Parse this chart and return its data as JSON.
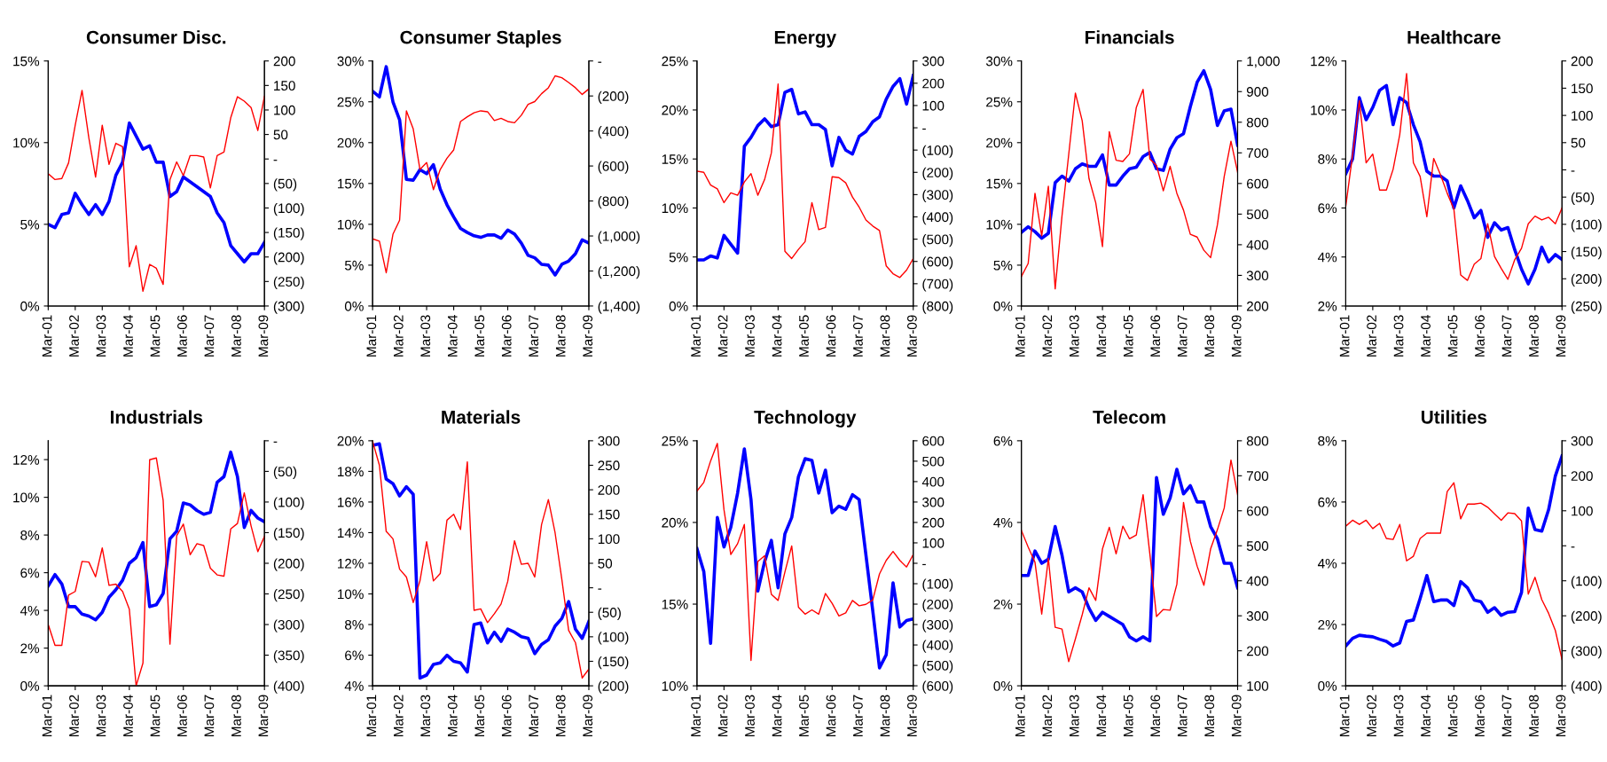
{
  "chart_data": [
    {
      "type": "line",
      "title": "Consumer Disc.",
      "x": [
        "2001-03",
        "2001-06",
        "2001-09",
        "2001-12",
        "2002-03",
        "2002-06",
        "2002-09",
        "2002-12",
        "2003-03",
        "2003-06",
        "2003-09",
        "2003-12",
        "2004-03",
        "2004-06",
        "2004-09",
        "2004-12",
        "2005-03",
        "2005-06",
        "2005-09",
        "2005-12",
        "2006-03",
        "2006-06",
        "2006-09",
        "2006-12",
        "2007-03",
        "2007-06",
        "2007-09",
        "2007-12",
        "2008-03",
        "2008-06",
        "2008-09",
        "2008-12",
        "2009-03"
      ],
      "xlim": [
        "2001-03",
        "2009-03"
      ],
      "xticks": [
        {
          "value": "2001-03",
          "label": "Mar-01"
        },
        {
          "value": "2002-03",
          "label": "Mar-02"
        },
        {
          "value": "2003-03",
          "label": "Mar-03"
        },
        {
          "value": "2004-03",
          "label": "Mar-04"
        },
        {
          "value": "2005-03",
          "label": "Mar-05"
        },
        {
          "value": "2006-03",
          "label": "Mar-06"
        },
        {
          "value": "2007-03",
          "label": "Mar-07"
        },
        {
          "value": "2008-03",
          "label": "Mar-08"
        },
        {
          "value": "2009-03",
          "label": "Mar-09"
        }
      ],
      "ylim": [
        0,
        15
      ],
      "yticks": [
        {
          "value": 0,
          "label": "0%"
        },
        {
          "value": 5,
          "label": "5%"
        },
        {
          "value": 10,
          "label": "10%"
        },
        {
          "value": 15,
          "label": "15%"
        }
      ],
      "y2lim": [
        -300,
        200
      ],
      "y2ticks": [
        {
          "value": -300,
          "label": "(300)"
        },
        {
          "value": -250,
          "label": "(250)"
        },
        {
          "value": -200,
          "label": "(200)"
        },
        {
          "value": -150,
          "label": "(150)"
        },
        {
          "value": -100,
          "label": "(100)"
        },
        {
          "value": -50,
          "label": "(50)"
        },
        {
          "value": 0,
          "label": "-"
        },
        50,
        100,
        150,
        200
      ],
      "series": [
        {
          "color": "#0000ff",
          "axis": "y",
          "values": [
            5.0,
            4.8,
            5.6,
            5.7,
            6.9,
            6.2,
            5.6,
            6.2,
            5.6,
            6.4,
            8.0,
            8.8,
            11.2,
            10.4,
            9.6,
            9.8,
            8.8,
            8.8,
            6.7,
            7.0,
            7.9,
            7.6,
            7.3,
            7.0,
            6.7,
            5.7,
            5.1,
            3.7,
            3.2,
            2.7,
            3.2,
            3.2,
            3.9
          ]
        },
        {
          "color": "#ff0000",
          "axis": "y2",
          "values": [
            -30,
            -42,
            -40,
            -8,
            69,
            140,
            43,
            -37,
            69,
            -11,
            32,
            25,
            -220,
            -177,
            -270,
            -215,
            -223,
            -256,
            -42,
            -6,
            -34,
            7,
            7,
            4,
            -59,
            7,
            14,
            84,
            127,
            118,
            105,
            58,
            128
          ]
        }
      ]
    },
    {
      "type": "line",
      "title": "Consumer Staples",
      "x": [
        "2001-03",
        "2001-06",
        "2001-09",
        "2001-12",
        "2002-03",
        "2002-06",
        "2002-09",
        "2002-12",
        "2003-03",
        "2003-06",
        "2003-09",
        "2003-12",
        "2004-03",
        "2004-06",
        "2004-09",
        "2004-12",
        "2005-03",
        "2005-06",
        "2005-09",
        "2005-12",
        "2006-03",
        "2006-06",
        "2006-09",
        "2006-12",
        "2007-03",
        "2007-06",
        "2007-09",
        "2007-12",
        "2008-03",
        "2008-06",
        "2008-09",
        "2008-12",
        "2009-03"
      ],
      "xlim": [
        "2001-03",
        "2009-03"
      ],
      "xticks": [
        {
          "value": "2001-03",
          "label": "Mar-01"
        },
        {
          "value": "2002-03",
          "label": "Mar-02"
        },
        {
          "value": "2003-03",
          "label": "Mar-03"
        },
        {
          "value": "2004-03",
          "label": "Mar-04"
        },
        {
          "value": "2005-03",
          "label": "Mar-05"
        },
        {
          "value": "2006-03",
          "label": "Mar-06"
        },
        {
          "value": "2007-03",
          "label": "Mar-07"
        },
        {
          "value": "2008-03",
          "label": "Mar-08"
        },
        {
          "value": "2009-03",
          "label": "Mar-09"
        }
      ],
      "ylim": [
        0,
        30
      ],
      "yticks": [
        {
          "value": 0,
          "label": "0%"
        },
        {
          "value": 5,
          "label": "5%"
        },
        {
          "value": 10,
          "label": "10%"
        },
        {
          "value": 15,
          "label": "15%"
        },
        {
          "value": 20,
          "label": "20%"
        },
        {
          "value": 25,
          "label": "25%"
        },
        {
          "value": 30,
          "label": "30%"
        }
      ],
      "y2lim": [
        -1400,
        0
      ],
      "y2ticks": [
        {
          "value": -1400,
          "label": "(1,400)"
        },
        {
          "value": -1200,
          "label": "(1,200)"
        },
        {
          "value": -1000,
          "label": "(1,000)"
        },
        {
          "value": -800,
          "label": "(800)"
        },
        {
          "value": -600,
          "label": "(600)"
        },
        {
          "value": -400,
          "label": "(400)"
        },
        {
          "value": -200,
          "label": "(200)"
        },
        {
          "value": 0,
          "label": "-"
        }
      ],
      "series": [
        {
          "color": "#0000ff",
          "axis": "y",
          "values": [
            26.3,
            25.6,
            29.3,
            25.0,
            22.8,
            15.5,
            15.4,
            16.7,
            16.2,
            17.3,
            14.3,
            12.4,
            10.9,
            9.5,
            9.0,
            8.6,
            8.4,
            8.7,
            8.7,
            8.3,
            9.3,
            8.8,
            7.7,
            6.2,
            5.9,
            5.1,
            5.0,
            3.8,
            5.1,
            5.5,
            6.4,
            8.1,
            7.7
          ]
        },
        {
          "color": "#ff0000",
          "axis": "y2",
          "values": [
            -1016,
            -1030,
            -1210,
            -990,
            -910,
            -285,
            -388,
            -620,
            -580,
            -735,
            -620,
            -556,
            -508,
            -346,
            -319,
            -296,
            -285,
            -290,
            -340,
            -328,
            -346,
            -353,
            -310,
            -248,
            -232,
            -187,
            -153,
            -85,
            -96,
            -123,
            -153,
            -191,
            -160
          ]
        }
      ]
    },
    {
      "type": "line",
      "title": "Energy",
      "x": [
        "2001-03",
        "2001-06",
        "2001-09",
        "2001-12",
        "2002-03",
        "2002-06",
        "2002-09",
        "2002-12",
        "2003-03",
        "2003-06",
        "2003-09",
        "2003-12",
        "2004-03",
        "2004-06",
        "2004-09",
        "2004-12",
        "2005-03",
        "2005-06",
        "2005-09",
        "2005-12",
        "2006-03",
        "2006-06",
        "2006-09",
        "2006-12",
        "2007-03",
        "2007-06",
        "2007-09",
        "2007-12",
        "2008-03",
        "2008-06",
        "2008-09",
        "2008-12",
        "2009-03"
      ],
      "xlim": [
        "2001-03",
        "2009-03"
      ],
      "xticks": [
        {
          "value": "2001-03",
          "label": "Mar-01"
        },
        {
          "value": "2002-03",
          "label": "Mar-02"
        },
        {
          "value": "2003-03",
          "label": "Mar-03"
        },
        {
          "value": "2004-03",
          "label": "Mar-04"
        },
        {
          "value": "2005-03",
          "label": "Mar-05"
        },
        {
          "value": "2006-03",
          "label": "Mar-06"
        },
        {
          "value": "2007-03",
          "label": "Mar-07"
        },
        {
          "value": "2008-03",
          "label": "Mar-08"
        },
        {
          "value": "2009-03",
          "label": "Mar-09"
        }
      ],
      "ylim": [
        0,
        25
      ],
      "yticks": [
        {
          "value": 0,
          "label": "0%"
        },
        {
          "value": 5,
          "label": "5%"
        },
        {
          "value": 10,
          "label": "10%"
        },
        {
          "value": 15,
          "label": "15%"
        },
        {
          "value": 20,
          "label": "20%"
        },
        {
          "value": 25,
          "label": "25%"
        }
      ],
      "y2lim": [
        -800,
        300
      ],
      "y2ticks": [
        {
          "value": -800,
          "label": "(800)"
        },
        {
          "value": -700,
          "label": "(700)"
        },
        {
          "value": -600,
          "label": "(600)"
        },
        {
          "value": -500,
          "label": "(500)"
        },
        {
          "value": -400,
          "label": "(400)"
        },
        {
          "value": -300,
          "label": "(300)"
        },
        {
          "value": -200,
          "label": "(200)"
        },
        {
          "value": -100,
          "label": "(100)"
        },
        {
          "value": 0,
          "label": "-"
        },
        100,
        200,
        300
      ],
      "series": [
        {
          "color": "#0000ff",
          "axis": "y",
          "values": [
            4.7,
            4.7,
            5.1,
            4.9,
            7.2,
            6.3,
            5.4,
            16.3,
            17.2,
            18.4,
            19.1,
            18.3,
            18.5,
            21.8,
            22.1,
            19.6,
            19.8,
            18.5,
            18.5,
            18.0,
            14.3,
            17.2,
            15.9,
            15.5,
            17.3,
            17.8,
            18.8,
            19.3,
            21.1,
            22.4,
            23.2,
            20.6,
            23.5
          ]
        },
        {
          "color": "#ff0000",
          "axis": "y2",
          "values": [
            -195,
            -200,
            -257,
            -274,
            -336,
            -292,
            -303,
            -243,
            -206,
            -303,
            -232,
            -113,
            197,
            -554,
            -587,
            -546,
            -511,
            -336,
            -457,
            -447,
            -220,
            -224,
            -247,
            -311,
            -356,
            -414,
            -441,
            -461,
            -620,
            -655,
            -672,
            -639,
            -587
          ]
        }
      ]
    },
    {
      "type": "line",
      "title": "Financials",
      "x": [
        "2001-03",
        "2001-06",
        "2001-09",
        "2001-12",
        "2002-03",
        "2002-06",
        "2002-09",
        "2002-12",
        "2003-03",
        "2003-06",
        "2003-09",
        "2003-12",
        "2004-03",
        "2004-06",
        "2004-09",
        "2004-12",
        "2005-03",
        "2005-06",
        "2005-09",
        "2005-12",
        "2006-03",
        "2006-06",
        "2006-09",
        "2006-12",
        "2007-03",
        "2007-06",
        "2007-09",
        "2007-12",
        "2008-03",
        "2008-06",
        "2008-09",
        "2008-12",
        "2009-03"
      ],
      "xlim": [
        "2001-03",
        "2009-03"
      ],
      "xticks": [
        {
          "value": "2001-03",
          "label": "Mar-01"
        },
        {
          "value": "2002-03",
          "label": "Mar-02"
        },
        {
          "value": "2003-03",
          "label": "Mar-03"
        },
        {
          "value": "2004-03",
          "label": "Mar-04"
        },
        {
          "value": "2005-03",
          "label": "Mar-05"
        },
        {
          "value": "2006-03",
          "label": "Mar-06"
        },
        {
          "value": "2007-03",
          "label": "Mar-07"
        },
        {
          "value": "2008-03",
          "label": "Mar-08"
        },
        {
          "value": "2009-03",
          "label": "Mar-09"
        }
      ],
      "ylim": [
        0,
        30
      ],
      "yticks": [
        {
          "value": 0,
          "label": "0%"
        },
        {
          "value": 5,
          "label": "5%"
        },
        {
          "value": 10,
          "label": "10%"
        },
        {
          "value": 15,
          "label": "15%"
        },
        {
          "value": 20,
          "label": "20%"
        },
        {
          "value": 25,
          "label": "25%"
        },
        {
          "value": 30,
          "label": "30%"
        }
      ],
      "y2lim": [
        200,
        1000
      ],
      "y2ticks": [
        200,
        300,
        400,
        500,
        600,
        700,
        800,
        900,
        {
          "value": 1000,
          "label": "1,000"
        }
      ],
      "series": [
        {
          "color": "#0000ff",
          "axis": "y",
          "values": [
            9.0,
            9.7,
            9.1,
            8.3,
            8.9,
            15.1,
            15.9,
            15.3,
            16.8,
            17.4,
            17.1,
            17.1,
            18.5,
            14.8,
            14.8,
            15.9,
            16.8,
            17.0,
            18.3,
            18.8,
            16.8,
            16.6,
            19.2,
            20.6,
            21.1,
            24.4,
            27.4,
            28.8,
            26.5,
            22.1,
            23.9,
            24.1,
            19.7
          ]
        },
        {
          "color": "#ff0000",
          "axis": "y2",
          "values": [
            296,
            339,
            568,
            429,
            591,
            256,
            494,
            695,
            895,
            805,
            616,
            537,
            394,
            769,
            676,
            672,
            697,
            848,
            907,
            680,
            659,
            576,
            656,
            568,
            513,
            434,
            425,
            382,
            358,
            465,
            623,
            738,
            637
          ]
        }
      ]
    },
    {
      "type": "line",
      "title": "Healthcare",
      "x": [
        "2001-03",
        "2001-06",
        "2001-09",
        "2001-12",
        "2002-03",
        "2002-06",
        "2002-09",
        "2002-12",
        "2003-03",
        "2003-06",
        "2003-09",
        "2003-12",
        "2004-03",
        "2004-06",
        "2004-09",
        "2004-12",
        "2005-03",
        "2005-06",
        "2005-09",
        "2005-12",
        "2006-03",
        "2006-06",
        "2006-09",
        "2006-12",
        "2007-03",
        "2007-06",
        "2007-09",
        "2007-12",
        "2008-03",
        "2008-06",
        "2008-09",
        "2008-12",
        "2009-03"
      ],
      "xlim": [
        "2001-03",
        "2009-03"
      ],
      "xticks": [
        {
          "value": "2001-03",
          "label": "Mar-01"
        },
        {
          "value": "2002-03",
          "label": "Mar-02"
        },
        {
          "value": "2003-03",
          "label": "Mar-03"
        },
        {
          "value": "2004-03",
          "label": "Mar-04"
        },
        {
          "value": "2005-03",
          "label": "Mar-05"
        },
        {
          "value": "2006-03",
          "label": "Mar-06"
        },
        {
          "value": "2007-03",
          "label": "Mar-07"
        },
        {
          "value": "2008-03",
          "label": "Mar-08"
        },
        {
          "value": "2009-03",
          "label": "Mar-09"
        }
      ],
      "ylim": [
        2,
        12
      ],
      "yticks": [
        {
          "value": 2,
          "label": "2%"
        },
        {
          "value": 4,
          "label": "4%"
        },
        {
          "value": 6,
          "label": "6%"
        },
        {
          "value": 8,
          "label": "8%"
        },
        {
          "value": 10,
          "label": "10%"
        },
        {
          "value": 12,
          "label": "12%"
        }
      ],
      "y2lim": [
        -250,
        200
      ],
      "y2ticks": [
        {
          "value": -250,
          "label": "(250)"
        },
        {
          "value": -200,
          "label": "(200)"
        },
        {
          "value": -150,
          "label": "(150)"
        },
        {
          "value": -100,
          "label": "(100)"
        },
        {
          "value": -50,
          "label": "(50)"
        },
        {
          "value": 0,
          "label": "-"
        },
        50,
        100,
        150,
        200
      ],
      "series": [
        {
          "color": "#0000ff",
          "axis": "y",
          "values": [
            7.4,
            8.0,
            10.5,
            9.6,
            10.1,
            10.8,
            11.0,
            9.4,
            10.5,
            10.3,
            9.4,
            8.7,
            7.5,
            7.3,
            7.3,
            7.1,
            6.0,
            6.9,
            6.3,
            5.6,
            5.9,
            4.8,
            5.4,
            5.1,
            5.2,
            4.3,
            3.5,
            2.9,
            3.5,
            4.4,
            3.8,
            4.1,
            3.9
          ]
        },
        {
          "color": "#ff0000",
          "axis": "y2",
          "values": [
            -67,
            27,
            127,
            13,
            29,
            -37,
            -37,
            1,
            65,
            177,
            13,
            -12,
            -86,
            21,
            -9,
            -43,
            -72,
            -193,
            -203,
            -173,
            -163,
            -99,
            -159,
            -181,
            -201,
            -165,
            -144,
            -99,
            -85,
            -92,
            -87,
            -99,
            -70
          ]
        }
      ]
    },
    {
      "type": "line",
      "title": "Industrials",
      "x": [
        "2001-03",
        "2001-06",
        "2001-09",
        "2001-12",
        "2002-03",
        "2002-06",
        "2002-09",
        "2002-12",
        "2003-03",
        "2003-06",
        "2003-09",
        "2003-12",
        "2004-03",
        "2004-06",
        "2004-09",
        "2004-12",
        "2005-03",
        "2005-06",
        "2005-09",
        "2005-12",
        "2006-03",
        "2006-06",
        "2006-09",
        "2006-12",
        "2007-03",
        "2007-06",
        "2007-09",
        "2007-12",
        "2008-03",
        "2008-06",
        "2008-09",
        "2008-12",
        "2009-03"
      ],
      "xlim": [
        "2001-03",
        "2009-03"
      ],
      "xticks": [
        {
          "value": "2001-03",
          "label": "Mar-01"
        },
        {
          "value": "2002-03",
          "label": "Mar-02"
        },
        {
          "value": "2003-03",
          "label": "Mar-03"
        },
        {
          "value": "2004-03",
          "label": "Mar-04"
        },
        {
          "value": "2005-03",
          "label": "Mar-05"
        },
        {
          "value": "2006-03",
          "label": "Mar-06"
        },
        {
          "value": "2007-03",
          "label": "Mar-07"
        },
        {
          "value": "2008-03",
          "label": "Mar-08"
        },
        {
          "value": "2009-03",
          "label": "Mar-09"
        }
      ],
      "ylim": [
        0,
        13
      ],
      "yticks": [
        {
          "value": 0,
          "label": "0%"
        },
        {
          "value": 2,
          "label": "2%"
        },
        {
          "value": 4,
          "label": "4%"
        },
        {
          "value": 6,
          "label": "6%"
        },
        {
          "value": 8,
          "label": "8%"
        },
        {
          "value": 10,
          "label": "10%"
        },
        {
          "value": 12,
          "label": "12%"
        }
      ],
      "y2lim": [
        -400,
        0
      ],
      "y2ticks": [
        {
          "value": -400,
          "label": "(400)"
        },
        {
          "value": -350,
          "label": "(350)"
        },
        {
          "value": -300,
          "label": "(300)"
        },
        {
          "value": -250,
          "label": "(250)"
        },
        {
          "value": -200,
          "label": "(200)"
        },
        {
          "value": -150,
          "label": "(150)"
        },
        {
          "value": -100,
          "label": "(100)"
        },
        {
          "value": -50,
          "label": "(50)"
        },
        {
          "value": 0,
          "label": "-"
        }
      ],
      "series": [
        {
          "color": "#0000ff",
          "axis": "y",
          "values": [
            5.3,
            5.9,
            5.4,
            4.2,
            4.2,
            3.8,
            3.7,
            3.5,
            3.9,
            4.7,
            5.1,
            5.6,
            6.5,
            6.8,
            7.6,
            4.2,
            4.3,
            4.9,
            7.8,
            8.2,
            9.7,
            9.6,
            9.3,
            9.1,
            9.2,
            10.8,
            11.1,
            12.4,
            11.1,
            8.4,
            9.3,
            8.9,
            8.7
          ]
        },
        {
          "color": "#ff0000",
          "axis": "y2",
          "values": [
            -300,
            -334,
            -334,
            -252,
            -246,
            -197,
            -198,
            -222,
            -175,
            -236,
            -234,
            -246,
            -275,
            -400,
            -363,
            -31,
            -28,
            -97,
            -332,
            -155,
            -136,
            -186,
            -168,
            -171,
            -208,
            -219,
            -221,
            -144,
            -135,
            -85,
            -139,
            -181,
            -156
          ]
        }
      ]
    },
    {
      "type": "line",
      "title": "Materials",
      "x": [
        "2001-03",
        "2001-06",
        "2001-09",
        "2001-12",
        "2002-03",
        "2002-06",
        "2002-09",
        "2002-12",
        "2003-03",
        "2003-06",
        "2003-09",
        "2003-12",
        "2004-03",
        "2004-06",
        "2004-09",
        "2004-12",
        "2005-03",
        "2005-06",
        "2005-09",
        "2005-12",
        "2006-03",
        "2006-06",
        "2006-09",
        "2006-12",
        "2007-03",
        "2007-06",
        "2007-09",
        "2007-12",
        "2008-03",
        "2008-06",
        "2008-09",
        "2008-12",
        "2009-03"
      ],
      "xlim": [
        "2001-03",
        "2009-03"
      ],
      "xticks": [
        {
          "value": "2001-03",
          "label": "Mar-01"
        },
        {
          "value": "2002-03",
          "label": "Mar-02"
        },
        {
          "value": "2003-03",
          "label": "Mar-03"
        },
        {
          "value": "2004-03",
          "label": "Mar-04"
        },
        {
          "value": "2005-03",
          "label": "Mar-05"
        },
        {
          "value": "2006-03",
          "label": "Mar-06"
        },
        {
          "value": "2007-03",
          "label": "Mar-07"
        },
        {
          "value": "2008-03",
          "label": "Mar-08"
        },
        {
          "value": "2009-03",
          "label": "Mar-09"
        }
      ],
      "ylim": [
        4,
        20
      ],
      "yticks": [
        {
          "value": 4,
          "label": "4%"
        },
        {
          "value": 6,
          "label": "6%"
        },
        {
          "value": 8,
          "label": "8%"
        },
        {
          "value": 10,
          "label": "10%"
        },
        {
          "value": 12,
          "label": "12%"
        },
        {
          "value": 14,
          "label": "14%"
        },
        {
          "value": 16,
          "label": "16%"
        },
        {
          "value": 18,
          "label": "18%"
        },
        {
          "value": 20,
          "label": "20%"
        }
      ],
      "y2lim": [
        -200,
        300
      ],
      "y2ticks": [
        {
          "value": -200,
          "label": "(200)"
        },
        {
          "value": -150,
          "label": "(150)"
        },
        {
          "value": -100,
          "label": "(100)"
        },
        {
          "value": -50,
          "label": "(50)"
        },
        {
          "value": 0,
          "label": "-"
        },
        50,
        100,
        150,
        200,
        250,
        300
      ],
      "series": [
        {
          "color": "#0000ff",
          "axis": "y",
          "values": [
            19.7,
            19.8,
            17.5,
            17.2,
            16.4,
            17.0,
            16.5,
            4.5,
            4.7,
            5.4,
            5.5,
            6.0,
            5.6,
            5.5,
            4.9,
            8.0,
            8.1,
            6.8,
            7.5,
            6.9,
            7.7,
            7.5,
            7.2,
            7.1,
            6.1,
            6.7,
            7.0,
            7.9,
            8.4,
            9.5,
            7.7,
            7.1,
            8.2
          ]
        },
        {
          "color": "#ff0000",
          "axis": "y2",
          "values": [
            299,
            250,
            115,
            100,
            38,
            22,
            -30,
            14,
            94,
            14,
            29,
            138,
            150,
            119,
            257,
            -46,
            -43,
            -71,
            -53,
            -33,
            13,
            96,
            48,
            50,
            22,
            129,
            180,
            112,
            17,
            -87,
            -112,
            -184,
            -166
          ]
        }
      ]
    },
    {
      "type": "line",
      "title": "Technology",
      "x": [
        "2001-03",
        "2001-06",
        "2001-09",
        "2001-12",
        "2002-03",
        "2002-06",
        "2002-09",
        "2002-12",
        "2003-03",
        "2003-06",
        "2003-09",
        "2003-12",
        "2004-03",
        "2004-06",
        "2004-09",
        "2004-12",
        "2005-03",
        "2005-06",
        "2005-09",
        "2005-12",
        "2006-03",
        "2006-06",
        "2006-09",
        "2006-12",
        "2007-03",
        "2007-06",
        "2007-09",
        "2007-12",
        "2008-03",
        "2008-06",
        "2008-09",
        "2008-12",
        "2009-03"
      ],
      "xlim": [
        "2001-03",
        "2009-03"
      ],
      "xticks": [
        {
          "value": "2001-03",
          "label": "Mar-01"
        },
        {
          "value": "2002-03",
          "label": "Mar-02"
        },
        {
          "value": "2003-03",
          "label": "Mar-03"
        },
        {
          "value": "2004-03",
          "label": "Mar-04"
        },
        {
          "value": "2005-03",
          "label": "Mar-05"
        },
        {
          "value": "2006-03",
          "label": "Mar-06"
        },
        {
          "value": "2007-03",
          "label": "Mar-07"
        },
        {
          "value": "2008-03",
          "label": "Mar-08"
        },
        {
          "value": "2009-03",
          "label": "Mar-09"
        }
      ],
      "ylim": [
        10,
        25
      ],
      "yticks": [
        {
          "value": 10,
          "label": "10%"
        },
        {
          "value": 15,
          "label": "15%"
        },
        {
          "value": 20,
          "label": "20%"
        },
        {
          "value": 25,
          "label": "25%"
        }
      ],
      "y2lim": [
        -600,
        600
      ],
      "y2ticks": [
        {
          "value": -600,
          "label": "(600)"
        },
        {
          "value": -500,
          "label": "(500)"
        },
        {
          "value": -400,
          "label": "(400)"
        },
        {
          "value": -300,
          "label": "(300)"
        },
        {
          "value": -200,
          "label": "(200)"
        },
        {
          "value": -100,
          "label": "(100)"
        },
        {
          "value": 0,
          "label": "-"
        },
        100,
        200,
        300,
        400,
        500,
        600
      ],
      "series": [
        {
          "color": "#0000ff",
          "axis": "y",
          "values": [
            18.4,
            17.0,
            12.6,
            20.3,
            18.5,
            19.7,
            21.8,
            24.5,
            21.4,
            15.8,
            17.6,
            18.9,
            16.0,
            19.3,
            20.3,
            22.8,
            23.9,
            23.8,
            21.8,
            23.2,
            20.6,
            21.0,
            20.8,
            21.7,
            21.4,
            18.0,
            14.6,
            11.1,
            11.9,
            16.3,
            13.6,
            14.0,
            14.1
          ]
        },
        {
          "color": "#ff0000",
          "axis": "y2",
          "values": [
            354,
            396,
            501,
            587,
            262,
            43,
            96,
            190,
            -476,
            9,
            37,
            -152,
            -182,
            -43,
            85,
            -215,
            -249,
            -228,
            -249,
            -148,
            -196,
            -258,
            -243,
            -182,
            -208,
            -201,
            -180,
            -52,
            14,
            58,
            14,
            -18,
            43
          ]
        }
      ]
    },
    {
      "type": "line",
      "title": "Telecom",
      "x": [
        "2001-03",
        "2001-06",
        "2001-09",
        "2001-12",
        "2002-03",
        "2002-06",
        "2002-09",
        "2002-12",
        "2003-03",
        "2003-06",
        "2003-09",
        "2003-12",
        "2004-03",
        "2004-06",
        "2004-09",
        "2004-12",
        "2005-03",
        "2005-06",
        "2005-09",
        "2005-12",
        "2006-03",
        "2006-06",
        "2006-09",
        "2006-12",
        "2007-03",
        "2007-06",
        "2007-09",
        "2007-12",
        "2008-03",
        "2008-06",
        "2008-09",
        "2008-12",
        "2009-03"
      ],
      "xlim": [
        "2001-03",
        "2009-03"
      ],
      "xticks": [
        {
          "value": "2001-03",
          "label": "Mar-01"
        },
        {
          "value": "2002-03",
          "label": "Mar-02"
        },
        {
          "value": "2003-03",
          "label": "Mar-03"
        },
        {
          "value": "2004-03",
          "label": "Mar-04"
        },
        {
          "value": "2005-03",
          "label": "Mar-05"
        },
        {
          "value": "2006-03",
          "label": "Mar-06"
        },
        {
          "value": "2007-03",
          "label": "Mar-07"
        },
        {
          "value": "2008-03",
          "label": "Mar-08"
        },
        {
          "value": "2009-03",
          "label": "Mar-09"
        }
      ],
      "ylim": [
        0,
        6
      ],
      "yticks": [
        {
          "value": 0,
          "label": "0%"
        },
        {
          "value": 2,
          "label": "2%"
        },
        {
          "value": 4,
          "label": "4%"
        },
        {
          "value": 6,
          "label": "6%"
        }
      ],
      "y2lim": [
        100,
        800
      ],
      "y2ticks": [
        100,
        200,
        300,
        400,
        500,
        600,
        700,
        800
      ],
      "series": [
        {
          "color": "#0000ff",
          "axis": "y",
          "values": [
            2.7,
            2.7,
            3.3,
            3.0,
            3.1,
            3.9,
            3.2,
            2.3,
            2.4,
            2.3,
            1.9,
            1.6,
            1.8,
            1.7,
            1.6,
            1.5,
            1.2,
            1.1,
            1.2,
            1.1,
            5.1,
            4.2,
            4.6,
            5.3,
            4.7,
            4.9,
            4.5,
            4.5,
            3.9,
            3.6,
            3.0,
            3.0,
            2.4
          ]
        },
        {
          "color": "#ff0000",
          "axis": "y2",
          "values": [
            544,
            496,
            453,
            305,
            464,
            267,
            262,
            169,
            234,
            303,
            380,
            344,
            491,
            553,
            477,
            556,
            520,
            531,
            646,
            477,
            298,
            318,
            316,
            390,
            624,
            513,
            442,
            387,
            491,
            546,
            608,
            745,
            646
          ]
        }
      ]
    },
    {
      "type": "line",
      "title": "Utilities",
      "x": [
        "2001-03",
        "2001-06",
        "2001-09",
        "2001-12",
        "2002-03",
        "2002-06",
        "2002-09",
        "2002-12",
        "2003-03",
        "2003-06",
        "2003-09",
        "2003-12",
        "2004-03",
        "2004-06",
        "2004-09",
        "2004-12",
        "2005-03",
        "2005-06",
        "2005-09",
        "2005-12",
        "2006-03",
        "2006-06",
        "2006-09",
        "2006-12",
        "2007-03",
        "2007-06",
        "2007-09",
        "2007-12",
        "2008-03",
        "2008-06",
        "2008-09",
        "2008-12",
        "2009-03"
      ],
      "xlim": [
        "2001-03",
        "2009-03"
      ],
      "xticks": [
        {
          "value": "2001-03",
          "label": "Mar-01"
        },
        {
          "value": "2002-03",
          "label": "Mar-02"
        },
        {
          "value": "2003-03",
          "label": "Mar-03"
        },
        {
          "value": "2004-03",
          "label": "Mar-04"
        },
        {
          "value": "2005-03",
          "label": "Mar-05"
        },
        {
          "value": "2006-03",
          "label": "Mar-06"
        },
        {
          "value": "2007-03",
          "label": "Mar-07"
        },
        {
          "value": "2008-03",
          "label": "Mar-08"
        },
        {
          "value": "2009-03",
          "label": "Mar-09"
        }
      ],
      "ylim": [
        0,
        8
      ],
      "yticks": [
        {
          "value": 0,
          "label": "0%"
        },
        {
          "value": 2,
          "label": "2%"
        },
        {
          "value": 4,
          "label": "4%"
        },
        {
          "value": 6,
          "label": "6%"
        },
        {
          "value": 8,
          "label": "8%"
        }
      ],
      "y2lim": [
        -400,
        300
      ],
      "y2ticks": [
        {
          "value": -400,
          "label": "(400)"
        },
        {
          "value": -300,
          "label": "(300)"
        },
        {
          "value": -200,
          "label": "(200)"
        },
        {
          "value": -100,
          "label": "(100)"
        },
        {
          "value": 0,
          "label": "-"
        },
        100,
        200,
        300
      ],
      "series": [
        {
          "color": "#0000ff",
          "axis": "y",
          "values": [
            1.3,
            1.55,
            1.65,
            1.62,
            1.6,
            1.52,
            1.45,
            1.3,
            1.4,
            2.1,
            2.15,
            2.85,
            3.6,
            2.75,
            2.8,
            2.8,
            2.62,
            3.4,
            3.2,
            2.8,
            2.75,
            2.4,
            2.55,
            2.3,
            2.4,
            2.42,
            3.05,
            5.8,
            5.1,
            5.05,
            5.75,
            6.85,
            7.5
          ]
        },
        {
          "color": "#ff0000",
          "axis": "y2",
          "values": [
            56,
            73,
            61,
            73,
            49,
            64,
            21,
            18,
            61,
            -43,
            -30,
            21,
            36,
            36,
            36,
            155,
            180,
            77,
            119,
            119,
            122,
            110,
            91,
            73,
            94,
            92,
            71,
            -138,
            -90,
            -154,
            -193,
            -242,
            -325
          ]
        }
      ]
    }
  ]
}
